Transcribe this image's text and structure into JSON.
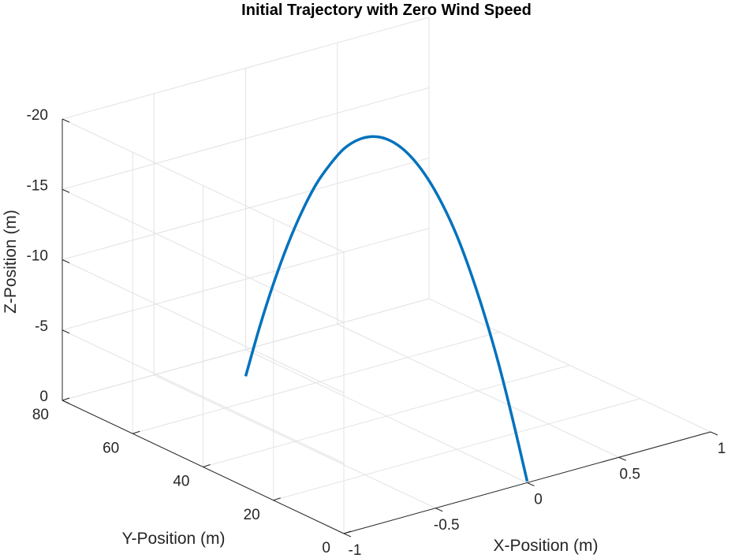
{
  "chart_data": {
    "type": "line",
    "title": "Initial Trajectory with Zero Wind Speed",
    "xlabel": "X-Position (m)",
    "ylabel": "Y-Position (m)",
    "zlabel": "Z-Position (m)",
    "xlim": [
      -1,
      1
    ],
    "ylim": [
      0,
      80
    ],
    "zlim": [
      0,
      -20
    ],
    "z_direction": "reversed",
    "grid": true,
    "x_ticks": [
      -1,
      -0.5,
      0,
      0.5,
      1
    ],
    "x_tick_labels": [
      "-1",
      "-0.5",
      "0",
      "0.5",
      "1"
    ],
    "y_ticks": [
      0,
      20,
      40,
      60,
      80
    ],
    "y_tick_labels": [
      "0",
      "20",
      "40",
      "60",
      "80"
    ],
    "z_ticks": [
      0,
      -5,
      -10,
      -15,
      -20
    ],
    "z_tick_labels": [
      "0",
      "-5",
      "-10",
      "-15",
      "-20"
    ],
    "series": [
      {
        "color": "#0072bd",
        "x": [
          0,
          0,
          0,
          0,
          0,
          0,
          0,
          0,
          0,
          0,
          0,
          0,
          0,
          0,
          0,
          0,
          0,
          0,
          0,
          0,
          0
        ],
        "y": [
          0,
          4,
          8,
          12,
          16,
          20,
          24,
          28,
          32,
          36,
          40,
          44,
          48,
          52,
          56,
          60,
          64,
          68,
          72,
          76,
          80
        ],
        "z": [
          -0.1,
          -3.9,
          -7.4,
          -10.4,
          -13,
          -15.2,
          -16.9,
          -18.2,
          -19.1,
          -19.6,
          -19.7,
          -19.4,
          -18.7,
          -17.6,
          -16,
          -14.1,
          -11.7,
          -8.9,
          -5.7,
          -2.1,
          1.9
        ]
      }
    ]
  }
}
